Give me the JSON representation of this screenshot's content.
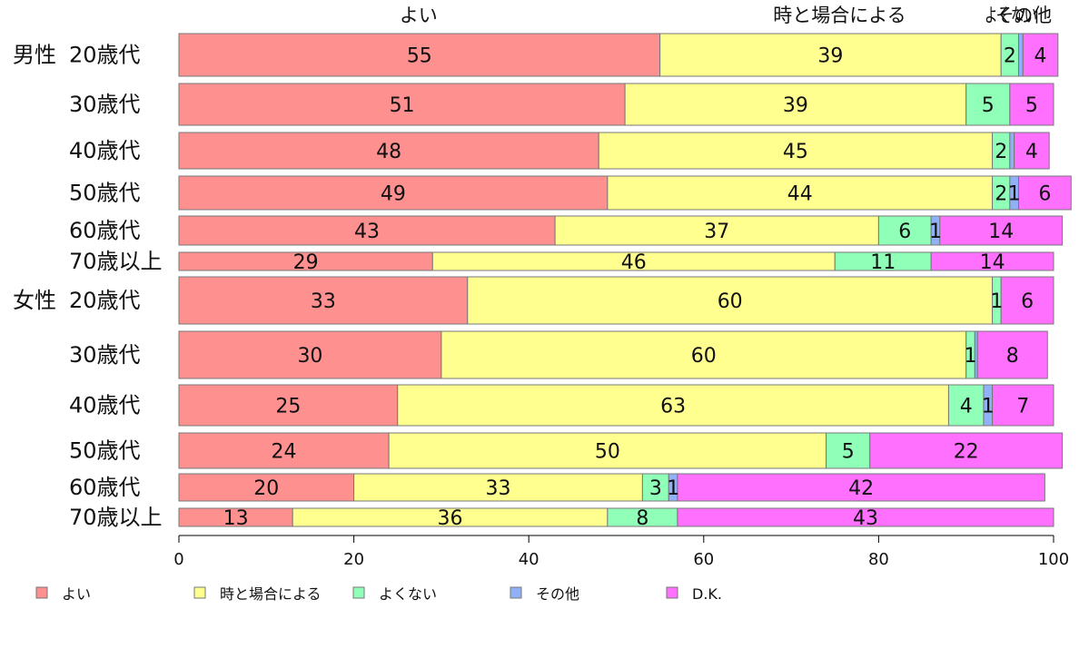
{
  "chart_data": {
    "type": "bar",
    "orientation": "horizontal",
    "stacked": true,
    "xlim": [
      0,
      100
    ],
    "x_ticks": [
      0,
      20,
      40,
      60,
      80,
      100
    ],
    "grid": false,
    "legend_position": "bottom",
    "top_category_labels": [
      "よい",
      "時と場合による",
      "よくない",
      "その他"
    ],
    "groups": [
      {
        "label": "男性",
        "rows": [
          0,
          1,
          2,
          3,
          4,
          5
        ]
      },
      {
        "label": "女性",
        "rows": [
          6,
          7,
          8,
          9,
          10,
          11
        ]
      }
    ],
    "rows": [
      {
        "label": "20歳代",
        "values": [
          55,
          39,
          2,
          0.5,
          4
        ]
      },
      {
        "label": "30歳代",
        "values": [
          51,
          39,
          5,
          0,
          5
        ]
      },
      {
        "label": "40歳代",
        "values": [
          48,
          45,
          2,
          0.5,
          4
        ]
      },
      {
        "label": "50歳代",
        "values": [
          49,
          44,
          2,
          1,
          6
        ]
      },
      {
        "label": "60歳代",
        "values": [
          43,
          37,
          6,
          1,
          14
        ]
      },
      {
        "label": "70歳以上",
        "values": [
          29,
          46,
          11,
          0,
          14
        ]
      },
      {
        "label": "20歳代",
        "values": [
          33,
          60,
          1,
          0,
          6
        ]
      },
      {
        "label": "30歳代",
        "values": [
          30,
          60,
          1,
          0.3,
          8
        ]
      },
      {
        "label": "40歳代",
        "values": [
          25,
          63,
          4,
          1,
          7
        ]
      },
      {
        "label": "50歳代",
        "values": [
          24,
          50,
          5,
          0,
          22
        ]
      },
      {
        "label": "60歳代",
        "values": [
          20,
          33,
          3,
          1,
          42
        ]
      },
      {
        "label": "70歳以上",
        "values": [
          13,
          36,
          8,
          0,
          43
        ]
      }
    ],
    "series": [
      {
        "name": "よい",
        "color": "#ff9090"
      },
      {
        "name": "時と場合による",
        "color": "#ffff90"
      },
      {
        "name": "よくない",
        "color": "#90ffb8"
      },
      {
        "name": "その他",
        "color": "#90b0f8"
      },
      {
        "name": "D.K.",
        "color": "#ff70ff"
      }
    ]
  }
}
